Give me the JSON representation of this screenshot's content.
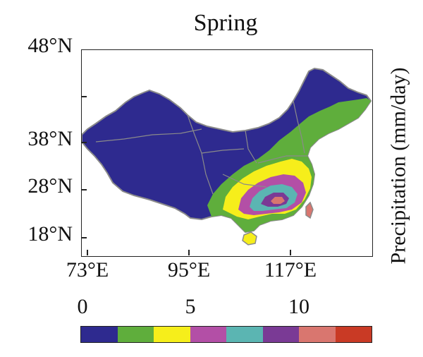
{
  "figure": {
    "title": "Spring",
    "colorbar_label": "Precipitation (mm/day)"
  },
  "axes": {
    "lat_ticks": [
      "48°N",
      "38°N",
      "28°N",
      "18°N"
    ],
    "lon_ticks": [
      "73°E",
      "95°E",
      "117°E"
    ]
  },
  "colorbar": {
    "tick_labels": [
      "0",
      "5",
      "10"
    ],
    "colors": [
      "#2e2a8f",
      "#5fae3c",
      "#f6ee1b",
      "#b34fa6",
      "#5bb5b2",
      "#7a3a95",
      "#d9766f",
      "#c93a25"
    ]
  },
  "map_colors": {
    "land_dry": "#2e2a8f",
    "green": "#5fae3c",
    "yellow": "#f6ee1b",
    "magenta": "#b34fa6",
    "teal": "#5bb5b2",
    "purple": "#7a3a95",
    "pink": "#d9766f",
    "border": "#8a8a8a"
  }
}
